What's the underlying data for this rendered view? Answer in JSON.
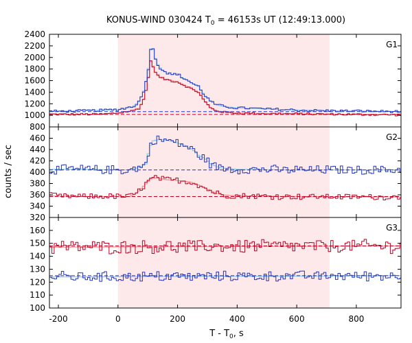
{
  "chart_data": {
    "type": "line",
    "title_main": "KONUS-WIND 030424 T",
    "title_sub": "0",
    "title_rest": " = 46153s UT (12:49:13.000)",
    "xlabel_main": "T - T",
    "xlabel_sub": "0",
    "xlabel_rest": ", s",
    "ylabel": "counts / sec",
    "xlim": [
      -230,
      950
    ],
    "x_ticks": [
      -200,
      0,
      200,
      400,
      600,
      800
    ],
    "highlight_interval": [
      0,
      710
    ],
    "colors": {
      "blue": "#2233bb",
      "red": "#bb0022",
      "light_blue": "#88c8ee",
      "light_red": "#f09090",
      "shade": "#fde9ea"
    },
    "panels": [
      {
        "name": "G1",
        "ylim": [
          800,
          2400
        ],
        "y_ticks": [
          800,
          1000,
          1200,
          1400,
          1600,
          1800,
          2000,
          2200,
          2400
        ],
        "background": {
          "blue": 1063,
          "red": 1015
        },
        "blue_points": [
          [
            -230,
            1070
          ],
          [
            -150,
            1075
          ],
          [
            -50,
            1090
          ],
          [
            0,
            1100
          ],
          [
            50,
            1150
          ],
          [
            70,
            1230
          ],
          [
            85,
            1400
          ],
          [
            95,
            1600
          ],
          [
            105,
            1900
          ],
          [
            112,
            2250
          ],
          [
            120,
            2100
          ],
          [
            130,
            1900
          ],
          [
            145,
            1800
          ],
          [
            160,
            1750
          ],
          [
            180,
            1700
          ],
          [
            200,
            1720
          ],
          [
            215,
            1650
          ],
          [
            230,
            1620
          ],
          [
            250,
            1550
          ],
          [
            270,
            1500
          ],
          [
            290,
            1350
          ],
          [
            310,
            1250
          ],
          [
            330,
            1180
          ],
          [
            360,
            1150
          ],
          [
            400,
            1130
          ],
          [
            500,
            1110
          ],
          [
            600,
            1090
          ],
          [
            700,
            1080
          ],
          [
            800,
            1075
          ],
          [
            950,
            1065
          ]
        ],
        "red_points": [
          [
            -230,
            1020
          ],
          [
            -150,
            1015
          ],
          [
            -50,
            1020
          ],
          [
            0,
            1040
          ],
          [
            50,
            1080
          ],
          [
            70,
            1120
          ],
          [
            85,
            1250
          ],
          [
            95,
            1450
          ],
          [
            105,
            1750
          ],
          [
            112,
            2000
          ],
          [
            120,
            1800
          ],
          [
            130,
            1700
          ],
          [
            145,
            1650
          ],
          [
            160,
            1620
          ],
          [
            180,
            1600
          ],
          [
            200,
            1580
          ],
          [
            215,
            1540
          ],
          [
            230,
            1500
          ],
          [
            250,
            1450
          ],
          [
            270,
            1400
          ],
          [
            290,
            1250
          ],
          [
            310,
            1130
          ],
          [
            330,
            1080
          ],
          [
            360,
            1050
          ],
          [
            400,
            1040
          ],
          [
            500,
            1030
          ],
          [
            600,
            1025
          ],
          [
            700,
            1020
          ],
          [
            800,
            1015
          ],
          [
            950,
            1010
          ]
        ],
        "noise": {
          "blue": 18,
          "red": 15
        }
      },
      {
        "name": "G2",
        "ylim": [
          320,
          480
        ],
        "y_ticks": [
          320,
          340,
          360,
          380,
          400,
          420,
          440,
          460
        ],
        "background": {
          "blue": 404,
          "red": 357
        },
        "blue_points": [
          [
            -230,
            405
          ],
          [
            -100,
            405
          ],
          [
            0,
            404
          ],
          [
            40,
            404
          ],
          [
            60,
            407
          ],
          [
            80,
            410
          ],
          [
            95,
            415
          ],
          [
            105,
            440
          ],
          [
            115,
            455
          ],
          [
            140,
            458
          ],
          [
            180,
            455
          ],
          [
            220,
            448
          ],
          [
            250,
            440
          ],
          [
            270,
            430
          ],
          [
            290,
            425
          ],
          [
            310,
            415
          ],
          [
            340,
            408
          ],
          [
            400,
            405
          ],
          [
            600,
            404
          ],
          [
            950,
            404
          ]
        ],
        "red_points": [
          [
            -230,
            358
          ],
          [
            -100,
            357
          ],
          [
            0,
            357
          ],
          [
            40,
            357
          ],
          [
            60,
            362
          ],
          [
            80,
            372
          ],
          [
            95,
            380
          ],
          [
            110,
            388
          ],
          [
            130,
            390
          ],
          [
            160,
            387
          ],
          [
            200,
            385
          ],
          [
            240,
            383
          ],
          [
            260,
            380
          ],
          [
            280,
            375
          ],
          [
            300,
            370
          ],
          [
            320,
            365
          ],
          [
            350,
            360
          ],
          [
            400,
            358
          ],
          [
            600,
            357
          ],
          [
            950,
            356
          ]
        ],
        "noise": {
          "blue": 6,
          "red": 4
        }
      },
      {
        "name": "G3",
        "ylim": [
          100,
          170
        ],
        "y_ticks": [
          100,
          110,
          120,
          130,
          140,
          150,
          160
        ],
        "background": {
          "blue": 125,
          "red": 148
        },
        "blue_points": [
          [
            -230,
            124
          ],
          [
            950,
            125
          ]
        ],
        "red_points": [
          [
            -230,
            147
          ],
          [
            950,
            148
          ]
        ],
        "noise": {
          "blue": 3,
          "red": 4
        }
      }
    ]
  }
}
